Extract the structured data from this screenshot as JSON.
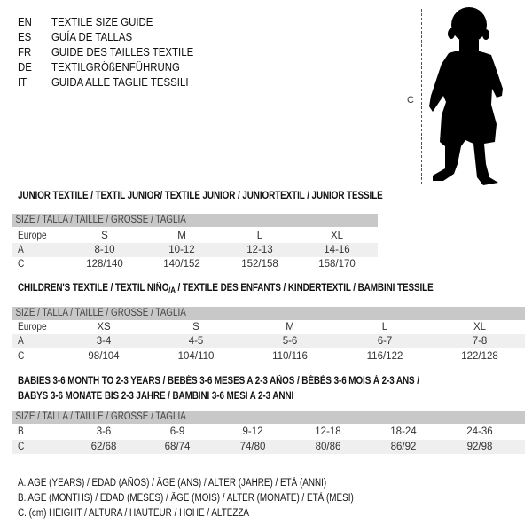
{
  "languages": [
    {
      "code": "EN",
      "title": "TEXTILE SIZE GUIDE"
    },
    {
      "code": "ES",
      "title": "GUÍA DE TALLAS"
    },
    {
      "code": "FR",
      "title": "GUIDE DES TAILLES TEXTILE"
    },
    {
      "code": "DE",
      "title": "TEXTILGRÖßENFÜHRUNG"
    },
    {
      "code": "IT",
      "title": "GUIDA ALLE TAGLIE TESSILI"
    }
  ],
  "figure": {
    "measure_label": "C",
    "icon": "child-silhouette"
  },
  "size_header": "SIZE / TALLA / TAILLE / GRÖSSE / TAGLIA",
  "junior": {
    "title": "JUNIOR TEXTILE / TEXTIL JUNIOR/ TEXTILE JUNIOR / JUNIORTEXTIL / JUNIOR TESSILE",
    "rows": [
      {
        "label": "Europe",
        "values": [
          "S",
          "M",
          "L",
          "XL"
        ]
      },
      {
        "label": "A",
        "values": [
          "8-10",
          "10-12",
          "12-13",
          "14-16"
        ]
      },
      {
        "label": "C",
        "values": [
          "128/140",
          "140/152",
          "152/158",
          "158/170"
        ]
      }
    ]
  },
  "children": {
    "title_pre": "CHILDREN'S TEXTILE / TEXTIL NIÑO",
    "title_sub": "/A",
    "title_post": " / TEXTILE DES ENFANTS / KINDERTEXTIL / BAMBINI TESSILE",
    "rows": [
      {
        "label": "Europe",
        "values": [
          "XS",
          "S",
          "M",
          "L",
          "XL"
        ]
      },
      {
        "label": "A",
        "values": [
          "3-4",
          "4-5",
          "5-6",
          "6-7",
          "7-8"
        ]
      },
      {
        "label": "C",
        "values": [
          "98/104",
          "104/110",
          "110/116",
          "116/122",
          "122/128"
        ]
      }
    ]
  },
  "babies": {
    "title_line1": "BABIES 3-6 MONTH TO 2-3 YEARS / BEBÉS 3-6 MESES A 2-3 AÑOS / BÉBÉS 3-6 MOIS À 2-3 ANS /",
    "title_line2": "BABYS 3-6 MONATE BIS 2-3 JAHRE / BAMBINI 3-6 MESI A 2-3 ANNI",
    "rows": [
      {
        "label": "B",
        "values": [
          "3-6",
          "6-9",
          "9-12",
          "12-18",
          "18-24",
          "24-36"
        ]
      },
      {
        "label": "C",
        "values": [
          "62/68",
          "68/74",
          "74/80",
          "80/86",
          "86/92",
          "92/98"
        ]
      }
    ]
  },
  "legend": [
    "A. AGE (YEARS) / EDAD (AÑOS) / ÂGE (ANS) / ALTER (JAHRE) / ETÀ (ANNI)",
    "B. AGE (MONTHS) / EDAD (MESES) / ÂGE (MOIS) / ALTER (MONATE) / ETÀ (MESI)",
    "C. (cm) HEIGHT / ALTURA / HAUTEUR / HÖHE / ALTEZZA"
  ]
}
